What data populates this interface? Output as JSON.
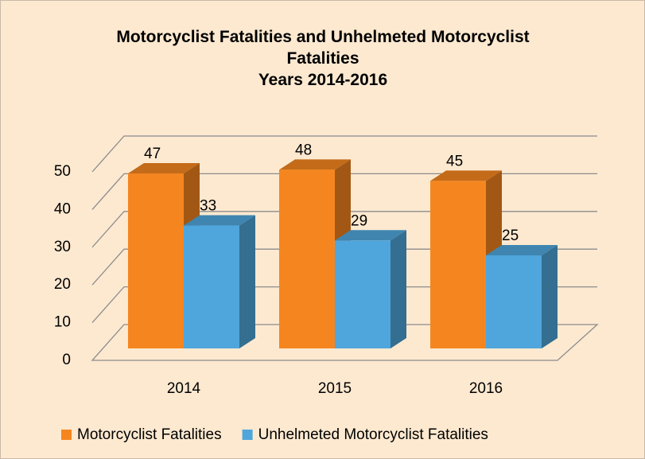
{
  "chart_data": {
    "type": "bar3d",
    "title": "Motorcyclist Fatalities and Unhelmeted Motorcyclist Fatalities",
    "subtitle": "Years 2014-2016",
    "categories": [
      "2014",
      "2015",
      "2016"
    ],
    "series": [
      {
        "name": "Motorcyclist Fatalities",
        "color": "#f5861f",
        "values": [
          47,
          48,
          45
        ]
      },
      {
        "name": "Unhelmeted Motorcyclist Fatalities",
        "color": "#4fa6dc",
        "values": [
          33,
          29,
          25
        ]
      }
    ],
    "ylim": [
      0,
      50
    ],
    "yticks": [
      0,
      10,
      20,
      30,
      40,
      50
    ],
    "grid": true,
    "legend": "bottom"
  }
}
